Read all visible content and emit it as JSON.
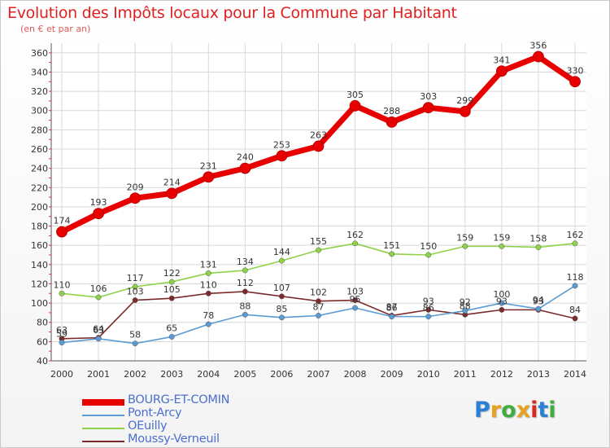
{
  "chart_data": {
    "type": "line",
    "title": "Evolution des Impôts locaux pour la Commune par Habitant",
    "subtitle": "(en € et par an)",
    "xlabel": "",
    "ylabel": "",
    "ylim": [
      40,
      370
    ],
    "yticks": [
      40,
      60,
      80,
      100,
      120,
      140,
      160,
      180,
      200,
      220,
      240,
      260,
      280,
      300,
      320,
      340,
      360
    ],
    "grid": true,
    "legend_position": "bottom-left",
    "categories": [
      "2000",
      "2001",
      "2002",
      "2003",
      "2004",
      "2005",
      "2006",
      "2007",
      "2008",
      "2009",
      "2010",
      "2011",
      "2012",
      "2013",
      "2014"
    ],
    "series": [
      {
        "name": "BOURG-ET-COMIN",
        "color": "#e80000",
        "values": [
          174,
          193,
          209,
          214,
          231,
          240,
          253,
          263,
          305,
          288,
          303,
          299,
          341,
          356,
          330
        ],
        "labels": [
          "174",
          "193",
          "209",
          "214",
          "231",
          "240",
          "253",
          "263",
          "305",
          "288",
          "303",
          "299",
          "341",
          "356",
          "330"
        ]
      },
      {
        "name": "Pont-Arcy",
        "color": "#5a9bd5",
        "values": [
          59,
          63,
          58,
          65,
          78,
          88,
          85,
          87,
          95,
          86,
          86,
          92,
          100,
          94,
          118
        ],
        "labels": [
          "59",
          "63",
          "58",
          "65",
          "78",
          "88",
          "85",
          "87",
          "95",
          "86",
          "86",
          "92",
          "100",
          "94",
          "118"
        ]
      },
      {
        "name": "OEuilly",
        "color": "#8ed24a",
        "values": [
          110,
          106,
          117,
          122,
          131,
          134,
          144,
          155,
          162,
          151,
          150,
          159,
          159,
          158,
          162
        ],
        "labels": [
          "110",
          "106",
          "117",
          "122",
          "131",
          "134",
          "144",
          "155",
          "162",
          "151",
          "150",
          "159",
          "159",
          "158",
          "162"
        ]
      },
      {
        "name": "Moussy-Verneuil",
        "color": "#7b2b2b",
        "values": [
          63,
          64,
          103,
          105,
          110,
          112,
          107,
          102,
          103,
          87,
          93,
          88,
          93,
          93,
          84
        ],
        "labels": [
          "63",
          "64",
          "103",
          "105",
          "110",
          "112",
          "107",
          "102",
          "103",
          "87",
          "93",
          "88",
          "93",
          "93",
          "84"
        ]
      }
    ]
  },
  "logo_letters": [
    "P",
    "r",
    "o",
    "x",
    "i",
    "t",
    "i"
  ],
  "colors": {
    "title": "#e02020",
    "legend_text": "#4a6fd0",
    "grid": "#d8d8d8",
    "axis_tick_red": "#e53030",
    "label_text": "#333333"
  }
}
